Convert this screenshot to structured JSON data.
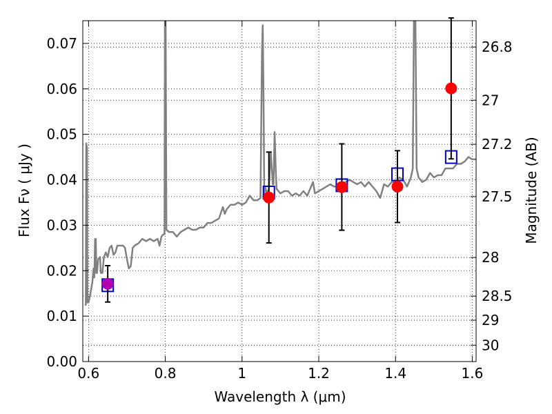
{
  "chart_data": {
    "type": "scatter",
    "xlabel": "Wavelength  λ (μm)",
    "ylabel_left": "Flux  Fν  ( μJy )",
    "ylabel_right": "Magnitude (AB)",
    "xlim": [
      0.585,
      1.61
    ],
    "ylim": [
      0.0,
      0.075
    ],
    "grid": true,
    "x_ticks": [
      0.6,
      0.8,
      1.0,
      1.2,
      1.4,
      1.6
    ],
    "x_tick_labels": [
      "0.6",
      "0.8",
      "1",
      "1.2",
      "1.4",
      "1.6"
    ],
    "y_ticks": [
      0.0,
      0.01,
      0.02,
      0.03,
      0.04,
      0.05,
      0.06,
      0.07
    ],
    "y_tick_labels": [
      "0.00",
      "0.01",
      "0.02",
      "0.03",
      "0.04",
      "0.05",
      "0.06",
      "0.07"
    ],
    "right_ticks": [
      {
        "label": "26.8",
        "flux": 0.0692
      },
      {
        "label": "27",
        "flux": 0.0575
      },
      {
        "label": "27.2",
        "flux": 0.0478
      },
      {
        "label": "27.5",
        "flux": 0.0363
      },
      {
        "label": "28",
        "flux": 0.0229
      },
      {
        "label": "28.5",
        "flux": 0.0144
      },
      {
        "label": "29",
        "flux": 0.0091
      },
      {
        "label": "30",
        "flux": 0.0036
      }
    ],
    "series": [
      {
        "kind": "model_spectrum",
        "color": "#808080",
        "points": [
          [
            0.59,
            0.0125
          ],
          [
            0.593,
            0.0125
          ],
          [
            0.594,
            0.048
          ],
          [
            0.596,
            0.047
          ],
          [
            0.597,
            0.013
          ],
          [
            0.6,
            0.013
          ],
          [
            0.605,
            0.015
          ],
          [
            0.61,
            0.0175
          ],
          [
            0.613,
            0.0205
          ],
          [
            0.615,
            0.0185
          ],
          [
            0.617,
            0.027
          ],
          [
            0.619,
            0.027
          ],
          [
            0.62,
            0.0195
          ],
          [
            0.622,
            0.0195
          ],
          [
            0.625,
            0.0225
          ],
          [
            0.63,
            0.023
          ],
          [
            0.632,
            0.0195
          ],
          [
            0.636,
            0.0195
          ],
          [
            0.64,
            0.023
          ],
          [
            0.645,
            0.024
          ],
          [
            0.65,
            0.023
          ],
          [
            0.655,
            0.025
          ],
          [
            0.66,
            0.0255
          ],
          [
            0.665,
            0.0235
          ],
          [
            0.67,
            0.024
          ],
          [
            0.675,
            0.0255
          ],
          [
            0.68,
            0.0255
          ],
          [
            0.69,
            0.0255
          ],
          [
            0.695,
            0.025
          ],
          [
            0.7,
            0.0225
          ],
          [
            0.705,
            0.0205
          ],
          [
            0.71,
            0.021
          ],
          [
            0.715,
            0.025
          ],
          [
            0.72,
            0.0255
          ],
          [
            0.73,
            0.026
          ],
          [
            0.74,
            0.027
          ],
          [
            0.75,
            0.0265
          ],
          [
            0.76,
            0.027
          ],
          [
            0.77,
            0.0265
          ],
          [
            0.78,
            0.027
          ],
          [
            0.785,
            0.0255
          ],
          [
            0.79,
            0.0275
          ],
          [
            0.795,
            0.028
          ],
          [
            0.798,
            0.028
          ],
          [
            0.799,
            0.075
          ],
          [
            0.801,
            0.075
          ],
          [
            0.803,
            0.029
          ],
          [
            0.81,
            0.0285
          ],
          [
            0.82,
            0.0285
          ],
          [
            0.83,
            0.0275
          ],
          [
            0.84,
            0.0285
          ],
          [
            0.85,
            0.029
          ],
          [
            0.86,
            0.0295
          ],
          [
            0.87,
            0.029
          ],
          [
            0.88,
            0.029
          ],
          [
            0.89,
            0.0295
          ],
          [
            0.9,
            0.0295
          ],
          [
            0.91,
            0.0305
          ],
          [
            0.92,
            0.0305
          ],
          [
            0.93,
            0.031
          ],
          [
            0.94,
            0.0315
          ],
          [
            0.95,
            0.034
          ],
          [
            0.955,
            0.0325
          ],
          [
            0.96,
            0.0335
          ],
          [
            0.97,
            0.0345
          ],
          [
            0.98,
            0.0345
          ],
          [
            0.99,
            0.035
          ],
          [
            1.0,
            0.0345
          ],
          [
            1.01,
            0.035
          ],
          [
            1.02,
            0.0365
          ],
          [
            1.03,
            0.0355
          ],
          [
            1.04,
            0.0355
          ],
          [
            1.048,
            0.036
          ],
          [
            1.052,
            0.068
          ],
          [
            1.054,
            0.074
          ],
          [
            1.056,
            0.059
          ],
          [
            1.058,
            0.037
          ],
          [
            1.06,
            0.0385
          ],
          [
            1.065,
            0.037
          ],
          [
            1.07,
            0.038
          ],
          [
            1.075,
            0.046
          ],
          [
            1.08,
            0.039
          ],
          [
            1.082,
            0.039
          ],
          [
            1.085,
            0.0505
          ],
          [
            1.088,
            0.042
          ],
          [
            1.09,
            0.038
          ],
          [
            1.1,
            0.037
          ],
          [
            1.11,
            0.0375
          ],
          [
            1.12,
            0.0375
          ],
          [
            1.13,
            0.0365
          ],
          [
            1.14,
            0.037
          ],
          [
            1.15,
            0.0365
          ],
          [
            1.16,
            0.0375
          ],
          [
            1.17,
            0.0365
          ],
          [
            1.18,
            0.0385
          ],
          [
            1.185,
            0.0395
          ],
          [
            1.19,
            0.037
          ],
          [
            1.2,
            0.0375
          ],
          [
            1.21,
            0.038
          ],
          [
            1.22,
            0.0385
          ],
          [
            1.23,
            0.039
          ],
          [
            1.24,
            0.0385
          ],
          [
            1.25,
            0.0385
          ],
          [
            1.26,
            0.039
          ],
          [
            1.27,
            0.0395
          ],
          [
            1.28,
            0.04
          ],
          [
            1.29,
            0.0395
          ],
          [
            1.3,
            0.039
          ],
          [
            1.31,
            0.0395
          ],
          [
            1.32,
            0.0385
          ],
          [
            1.33,
            0.0395
          ],
          [
            1.34,
            0.0385
          ],
          [
            1.35,
            0.0375
          ],
          [
            1.36,
            0.036
          ],
          [
            1.365,
            0.0375
          ],
          [
            1.37,
            0.039
          ],
          [
            1.38,
            0.0385
          ],
          [
            1.39,
            0.0395
          ],
          [
            1.4,
            0.0395
          ],
          [
            1.41,
            0.0405
          ],
          [
            1.42,
            0.04
          ],
          [
            1.43,
            0.0385
          ],
          [
            1.44,
            0.0405
          ],
          [
            1.445,
            0.0425
          ],
          [
            1.448,
            0.075
          ],
          [
            1.452,
            0.075
          ],
          [
            1.455,
            0.0425
          ],
          [
            1.46,
            0.0405
          ],
          [
            1.47,
            0.0395
          ],
          [
            1.48,
            0.04
          ],
          [
            1.49,
            0.0415
          ],
          [
            1.5,
            0.0405
          ],
          [
            1.51,
            0.041
          ],
          [
            1.52,
            0.041
          ],
          [
            1.53,
            0.0425
          ],
          [
            1.54,
            0.0425
          ],
          [
            1.55,
            0.0425
          ],
          [
            1.56,
            0.0435
          ],
          [
            1.57,
            0.0435
          ],
          [
            1.58,
            0.044
          ],
          [
            1.59,
            0.045
          ],
          [
            1.6,
            0.0445
          ],
          [
            1.61,
            0.0445
          ]
        ]
      },
      {
        "kind": "model_points",
        "marker": "open-square",
        "color": "#0000cc",
        "points": [
          [
            0.65,
            0.0168
          ],
          [
            1.07,
            0.0372
          ],
          [
            1.26,
            0.0388
          ],
          [
            1.405,
            0.0412
          ],
          [
            1.545,
            0.045
          ]
        ]
      },
      {
        "kind": "observed",
        "marker": "filled-circle",
        "color": "#ff0000",
        "points": [
          {
            "x": 1.07,
            "y": 0.0361,
            "err": 0.01
          },
          {
            "x": 1.26,
            "y": 0.0384,
            "err": 0.0095
          },
          {
            "x": 1.405,
            "y": 0.0385,
            "err": 0.0079
          },
          {
            "x": 1.545,
            "y": 0.0601,
            "err": 0.0155
          }
        ]
      },
      {
        "kind": "observed_alt",
        "marker": "filled-circle",
        "color": "#b000b0",
        "points": [
          {
            "x": 0.65,
            "y": 0.0171,
            "err": 0.004
          }
        ]
      }
    ]
  }
}
